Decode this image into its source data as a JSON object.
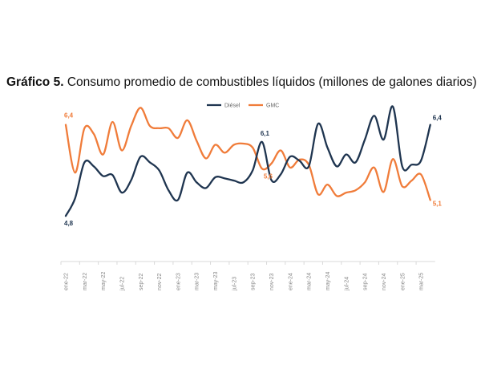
{
  "chart_data": {
    "type": "line",
    "title_bold": "Gráfico 5.",
    "title": "Consumo promedio de combustibles líquidos (millones de galones diarios)",
    "xlabel": "",
    "ylabel": "",
    "ylim": [
      4.0,
      7.0
    ],
    "grid": false,
    "legend_position": "top-center",
    "tick_labels": [
      "ene-22",
      "mar-22",
      "may-22",
      "jul-22",
      "sep-22",
      "nov-22",
      "ene-23",
      "mar-23",
      "may-23",
      "jul-23",
      "sep-23",
      "nov-23",
      "ene-24",
      "mar-24",
      "may-24",
      "jul-24",
      "sep-24",
      "nov-24",
      "ene-25",
      "mar-25"
    ],
    "x_months": "ene-22 to abr-25 (monthly)",
    "series": [
      {
        "name": "Diésel",
        "color": "#1f3550",
        "values": [
          4.8,
          5.11,
          5.74,
          5.67,
          5.5,
          5.52,
          5.21,
          5.43,
          5.84,
          5.74,
          5.6,
          5.25,
          5.08,
          5.56,
          5.39,
          5.29,
          5.48,
          5.46,
          5.42,
          5.39,
          5.6,
          6.1,
          5.43,
          5.53,
          5.84,
          5.77,
          5.67,
          6.42,
          6.0,
          5.67,
          5.88,
          5.74,
          6.14,
          6.56,
          6.14,
          6.72,
          5.67,
          5.7,
          5.77,
          6.4
        ]
      },
      {
        "name": "GMC",
        "color": "#f07c3a",
        "values": [
          6.4,
          5.56,
          6.34,
          6.24,
          5.88,
          6.45,
          5.95,
          6.38,
          6.7,
          6.38,
          6.34,
          6.34,
          6.17,
          6.48,
          6.12,
          5.81,
          6.05,
          5.91,
          6.05,
          6.07,
          6.0,
          5.63,
          5.72,
          5.95,
          5.65,
          5.79,
          5.7,
          5.18,
          5.35,
          5.15,
          5.21,
          5.25,
          5.39,
          5.65,
          5.22,
          5.8,
          5.32,
          5.42,
          5.53,
          5.08
        ]
      }
    ],
    "annotations": [
      {
        "series": "GMC",
        "index": 0,
        "text": "6,4"
      },
      {
        "series": "Diésel",
        "index": 0,
        "text": "4,8"
      },
      {
        "series": "Diésel",
        "index": 21,
        "text": "6,1"
      },
      {
        "series": "GMC",
        "index": 21,
        "text": "5,6"
      },
      {
        "series": "Diésel",
        "index": 39,
        "text": "6,4"
      },
      {
        "series": "GMC",
        "index": 39,
        "text": "5,1"
      }
    ]
  }
}
